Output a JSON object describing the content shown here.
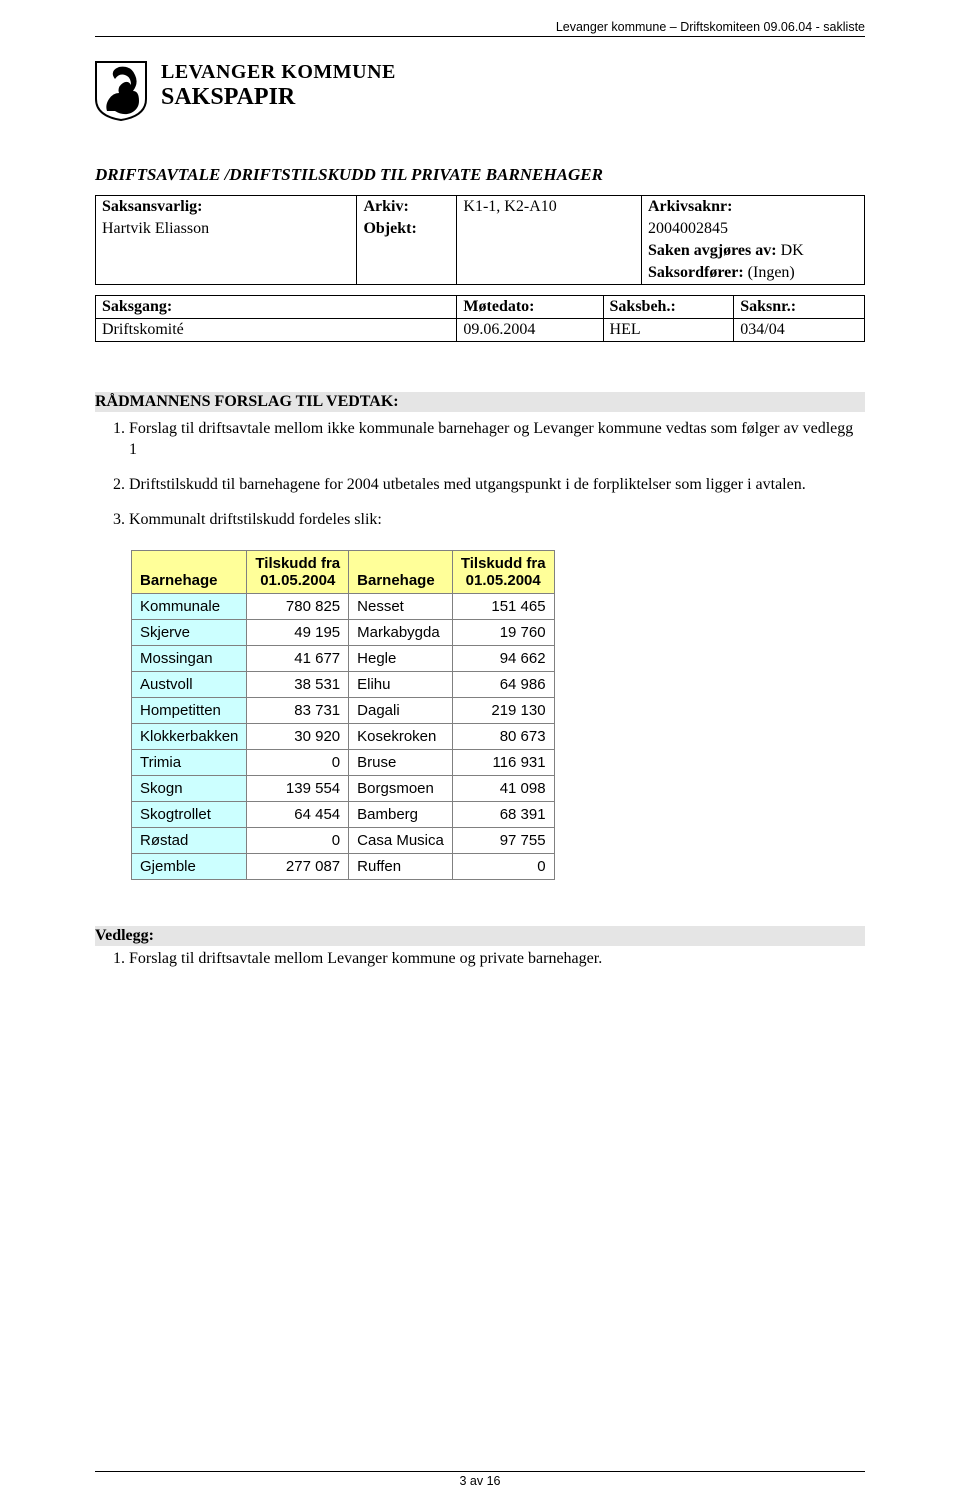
{
  "header_text": "Levanger kommune – Driftskomiteen 09.06.04 - sakliste",
  "org_name": "LEVANGER KOMMUNE",
  "doc_type": "SAKSPAPIR",
  "case_title": "DRIFTSAVTALE /DRIFTSTILSKUDD TIL PRIVATE BARNEHAGER",
  "meta": {
    "labels": {
      "saksansvarlig": "Saksansvarlig:",
      "arkiv": "Arkiv:",
      "arkivsaknr": "Arkivsaknr:",
      "objekt": "Objekt:",
      "avgjores": "Saken avgjøres av:",
      "saksordf": "Saksordfører:"
    },
    "saksansvarlig_val": "Hartvik Eliasson",
    "arkiv_val": "K1-1, K2-A10",
    "arkivsaknr_val": "2004002845",
    "avgjores_val": "DK",
    "saksordf_val": "(Ingen)"
  },
  "gang": {
    "headers": {
      "saksgang": "Saksgang:",
      "motedato": "Møtedato:",
      "saksbeh": "Saksbeh.:",
      "saksnr": "Saksnr.:"
    },
    "row": {
      "saksgang": "Driftskomité",
      "motedato": "09.06.2004",
      "saksbeh": "HEL",
      "saksnr": "034/04"
    }
  },
  "forslag_heading": "RÅDMANNENS FORSLAG TIL VEDTAK:",
  "forslag_items": [
    "Forslag til driftsavtale mellom  ikke kommunale barnehager og Levanger kommune vedtas som følger av vedlegg 1",
    "Driftstilskudd til barnehagene for 2004 utbetales med utgangspunkt i de forpliktelser som ligger i avtalen.",
    "Kommunalt driftstilskudd fordeles slik:"
  ],
  "tilskudd": {
    "headers": {
      "name": "Barnehage",
      "val_line1": "Tilskudd fra",
      "val_line2": "01.05.2004"
    },
    "rows": [
      {
        "n1": "Kommunale",
        "v1": "780 825",
        "n2": "Nesset",
        "v2": "151 465"
      },
      {
        "n1": "Skjerve",
        "v1": "49 195",
        "n2": "Markabygda",
        "v2": "19 760"
      },
      {
        "n1": "Mossingan",
        "v1": "41 677",
        "n2": "Hegle",
        "v2": "94 662"
      },
      {
        "n1": "Austvoll",
        "v1": "38 531",
        "n2": "Elihu",
        "v2": "64 986"
      },
      {
        "n1": "Hompetitten",
        "v1": "83 731",
        "n2": "Dagali",
        "v2": "219 130"
      },
      {
        "n1": "Klokkerbakken",
        "v1": "30 920",
        "n2": "Kosekroken",
        "v2": "80 673"
      },
      {
        "n1": "Trimia",
        "v1": "0",
        "n2": "Bruse",
        "v2": "116 931"
      },
      {
        "n1": "Skogn",
        "v1": "139 554",
        "n2": "Borgsmoen",
        "v2": "41 098"
      },
      {
        "n1": "Skogtrollet",
        "v1": "64 454",
        "n2": "Bamberg",
        "v2": "68 391"
      },
      {
        "n1": "Røstad",
        "v1": "0",
        "n2": "Casa Musica",
        "v2": "97 755"
      },
      {
        "n1": "Gjemble",
        "v1": "277 087",
        "n2": "Ruffen",
        "v2": "0"
      }
    ],
    "col_bg_left": "#ccffff",
    "header_bg": "#ffff99",
    "border_color": "#808080"
  },
  "vedlegg": {
    "heading": "Vedlegg:",
    "items": [
      "Forslag til driftsavtale mellom Levanger kommune og private barnehager."
    ]
  },
  "footer_text": "3 av 16"
}
